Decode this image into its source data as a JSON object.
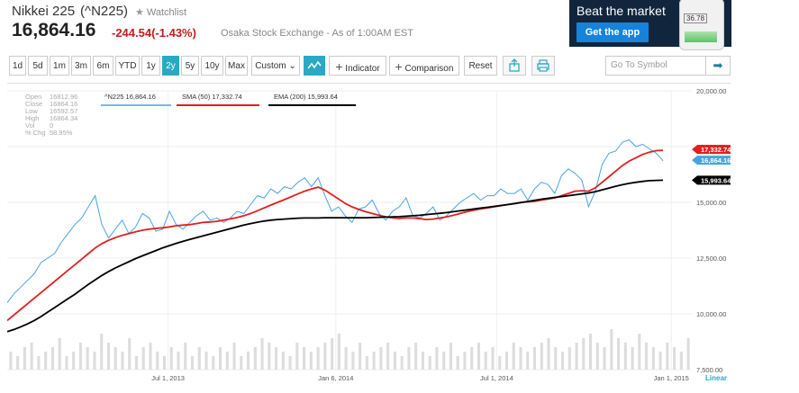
{
  "quote": {
    "name": "Nikkei 225",
    "symbol": "(^N225)",
    "watchlist_label": "Watchlist",
    "price": "16,864.16",
    "change": "-244.54(-1.43%)",
    "exchange": "Osaka Stock Exchange - As of 1:00AM EST"
  },
  "ad": {
    "headline": "Beat the market",
    "button": "Get the app",
    "phone_value": "36.78"
  },
  "toolbar": {
    "ranges": [
      "1d",
      "5d",
      "1m",
      "3m",
      "6m",
      "YTD",
      "1y",
      "2y",
      "5y",
      "10y",
      "Max"
    ],
    "selected_range": "2y",
    "custom_label": "Custom",
    "indicator_label": "Indicator",
    "comparison_label": "Comparison",
    "reset_label": "Reset",
    "goto_placeholder": "Go To Symbol"
  },
  "colors": {
    "price": "#4aa3df",
    "sma": "#e02020",
    "ema": "#000000",
    "selected": "#2aa9c4",
    "down": "#c21d1d"
  },
  "ohlc": {
    "open_label": "Open",
    "open": "16812.96",
    "close_label": "Close",
    "close": "16864.16",
    "low_label": "Low",
    "low": "16592.57",
    "high_label": "High",
    "high": "16864.34",
    "vol_label": "Vol",
    "vol": "0",
    "pchg_label": "% Chg",
    "pchg": "58.95%"
  },
  "legend": {
    "price": "^N225 16,864.16",
    "sma": "SMA (50) 17,332.74",
    "ema": "EMA (200) 15,993.64"
  },
  "scale_label": "Linear",
  "chart_data": {
    "type": "line",
    "ylim": [
      7500,
      20000
    ],
    "y_ticks": [
      "20,000.00",
      "17,500.00",
      "15,000.00",
      "12,500.00",
      "10,000.00",
      "7,500.00"
    ],
    "y_tick_values": [
      20000,
      17500,
      15000,
      12500,
      10000,
      7500
    ],
    "x_ticks": [
      "Jul 1, 2013",
      "Jan 6, 2014",
      "Jul 1, 2014",
      "Jan 1, 2015"
    ],
    "x_tick_pos": [
      0.235,
      0.48,
      0.715,
      0.97
    ],
    "price_tags": [
      "17,332.74",
      "16,864.16",
      "15,993.64"
    ],
    "series": [
      {
        "name": "^N225",
        "values": [
          10500,
          10900,
          11200,
          11500,
          11800,
          12300,
          12500,
          12700,
          13200,
          13600,
          14000,
          14300,
          14800,
          15300,
          14000,
          13400,
          13800,
          14200,
          13600,
          13900,
          14500,
          14300,
          13700,
          13800,
          14600,
          14000,
          13800,
          14100,
          14400,
          14600,
          14200,
          14300,
          14100,
          14300,
          14600,
          14500,
          14900,
          15300,
          15200,
          15600,
          15400,
          15700,
          15600,
          15900,
          16100,
          15700,
          16100,
          15300,
          14600,
          14800,
          14400,
          14100,
          14700,
          14800,
          15100,
          14500,
          14200,
          14600,
          14800,
          15200,
          14400,
          14300,
          14500,
          14800,
          14200,
          14400,
          14700,
          15000,
          15200,
          15400,
          15100,
          15300,
          15300,
          15600,
          15400,
          15400,
          15600,
          15100,
          15600,
          15900,
          15800,
          15400,
          16200,
          16500,
          16300,
          16000,
          14800,
          15500,
          16700,
          17200,
          17300,
          17700,
          17800,
          17500,
          17600,
          17400,
          17200,
          16864
        ]
      },
      {
        "name": "SMA (50)",
        "values": [
          9700,
          9950,
          10200,
          10450,
          10700,
          10950,
          11200,
          11450,
          11700,
          11950,
          12200,
          12450,
          12700,
          12950,
          13150,
          13300,
          13420,
          13520,
          13600,
          13680,
          13750,
          13800,
          13830,
          13860,
          13900,
          13950,
          13980,
          14000,
          14050,
          14100,
          14120,
          14150,
          14200,
          14260,
          14320,
          14400,
          14500,
          14620,
          14750,
          14880,
          15000,
          15120,
          15250,
          15380,
          15500,
          15600,
          15680,
          15550,
          15350,
          15150,
          14950,
          14800,
          14680,
          14580,
          14500,
          14420,
          14350,
          14300,
          14280,
          14300,
          14300,
          14270,
          14230,
          14250,
          14300,
          14350,
          14420,
          14500,
          14580,
          14650,
          14700,
          14750,
          14800,
          14850,
          14900,
          14950,
          15000,
          15020,
          15050,
          15100,
          15150,
          15200,
          15300,
          15400,
          15500,
          15520,
          15500,
          15650,
          15900,
          16150,
          16400,
          16650,
          16850,
          17000,
          17150,
          17250,
          17320,
          17332
        ]
      },
      {
        "name": "EMA (200)",
        "values": [
          9200,
          9300,
          9420,
          9550,
          9700,
          9880,
          10080,
          10280,
          10480,
          10680,
          10880,
          11100,
          11320,
          11520,
          11720,
          11900,
          12060,
          12200,
          12340,
          12480,
          12600,
          12720,
          12840,
          12960,
          13060,
          13160,
          13250,
          13340,
          13420,
          13500,
          13580,
          13660,
          13740,
          13820,
          13900,
          13980,
          14050,
          14110,
          14160,
          14200,
          14230,
          14250,
          14270,
          14290,
          14300,
          14300,
          14300,
          14310,
          14310,
          14310,
          14310,
          14310,
          14310,
          14310,
          14320,
          14330,
          14340,
          14350,
          14360,
          14380,
          14400,
          14420,
          14450,
          14480,
          14510,
          14540,
          14580,
          14620,
          14660,
          14700,
          14740,
          14780,
          14820,
          14860,
          14900,
          14940,
          14990,
          15040,
          15090,
          15140,
          15180,
          15220,
          15260,
          15300,
          15340,
          15380,
          15420,
          15480,
          15560,
          15640,
          15720,
          15790,
          15850,
          15900,
          15940,
          15970,
          15985,
          15993
        ]
      }
    ],
    "volume": [
      4,
      3,
      5,
      6,
      3,
      4,
      5,
      7,
      3,
      4,
      6,
      5,
      4,
      8,
      6,
      5,
      4,
      7,
      3,
      5,
      6,
      4,
      3,
      5,
      4,
      6,
      3,
      5,
      4,
      3,
      5,
      4,
      6,
      3,
      4,
      5,
      7,
      6,
      5,
      4,
      3,
      6,
      5,
      4,
      5,
      6,
      7,
      8,
      5,
      4,
      6,
      3,
      4,
      5,
      6,
      4,
      3,
      5,
      6,
      4,
      3,
      5,
      4,
      6,
      3,
      4,
      5,
      6,
      4,
      5,
      3,
      4,
      6,
      5,
      4,
      5,
      6,
      7,
      5,
      4,
      5,
      6,
      7,
      8,
      6,
      5,
      9,
      7,
      6,
      5,
      8,
      6,
      5,
      4,
      6,
      5,
      4,
      7
    ]
  }
}
